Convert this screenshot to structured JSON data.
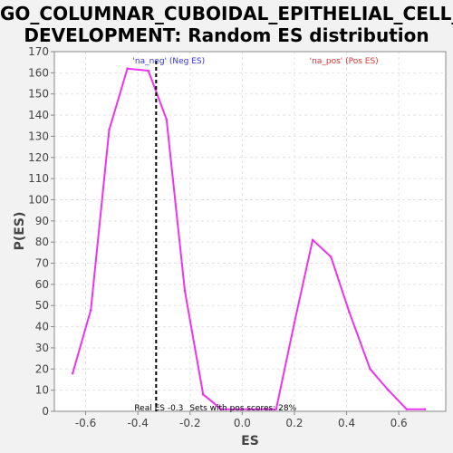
{
  "header": {
    "title_line_1": "GO_COLUMNAR_CUBOIDAL_EPITHELIAL_CELL_",
    "title_line_2": "DEVELOPMENT: Random ES distribution"
  },
  "chart_data": {
    "type": "line",
    "title": "GO_COLUMNAR_CUBOIDAL_EPITHELIAL_CELL_DEVELOPMENT: Random ES distribution",
    "xlabel": "ES",
    "ylabel": "P(ES)",
    "xlim": [
      -0.72,
      0.78
    ],
    "ylim": [
      0,
      170
    ],
    "x_ticks": [
      -0.6,
      -0.4,
      -0.2,
      0.0,
      0.2,
      0.4,
      0.6
    ],
    "x_tick_labels": [
      "-0.6",
      "-0.4",
      "-0.2",
      "0.0",
      "0.2",
      "0.4",
      "0.6"
    ],
    "y_ticks": [
      0,
      10,
      20,
      30,
      40,
      50,
      60,
      70,
      80,
      90,
      100,
      110,
      120,
      130,
      140,
      150,
      160,
      170
    ],
    "grid": true,
    "series": [
      {
        "color": "#ee33ee",
        "x": [
          -0.65,
          -0.58,
          -0.51,
          -0.44,
          -0.36,
          -0.29,
          -0.22,
          -0.15,
          -0.08,
          -0.01,
          0.06,
          0.13,
          0.2,
          0.27,
          0.34,
          0.41,
          0.49,
          0.56,
          0.63,
          0.7
        ],
        "y": [
          18,
          48,
          133,
          162,
          161,
          138,
          57,
          8,
          1,
          1,
          1,
          1,
          42,
          81,
          73,
          47,
          20,
          10,
          1,
          1
        ]
      }
    ],
    "real_es": -0.33,
    "annotations": {
      "neg_label": "'na_neg' (Neg ES)",
      "neg_color": "#3333dd",
      "pos_label": "'na_pos' (Pos ES)",
      "pos_color": "#dd3333",
      "real_es_label": "Real ES -0.3",
      "pos_scores_label": "Sets with pos scores: 28%"
    }
  }
}
